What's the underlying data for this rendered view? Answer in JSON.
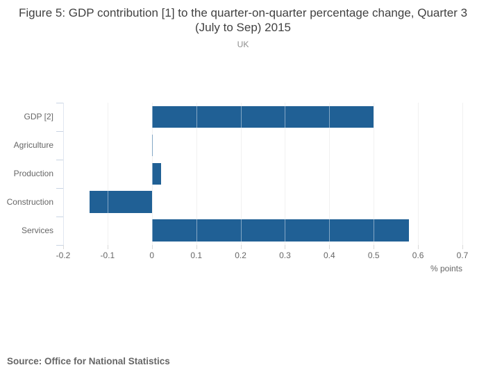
{
  "header": {
    "title": "Figure 5: GDP contribution [1] to the quarter-on-quarter percentage change, Quarter 3 (July to Sep) 2015",
    "subtitle": "UK"
  },
  "footer": {
    "source": "Source: Office for National Statistics"
  },
  "chart_data": {
    "type": "bar",
    "orientation": "horizontal",
    "title": "Figure 5: GDP contribution [1] to the quarter-on-quarter percentage change, Quarter 3 (July to Sep) 2015",
    "subtitle": "UK",
    "categories": [
      "GDP [2]",
      "Agriculture",
      "Production",
      "Construction",
      "Services"
    ],
    "values": [
      0.5,
      0.0,
      0.02,
      -0.14,
      0.58
    ],
    "xlabel": "% points",
    "ylabel": "",
    "xlim": [
      -0.2,
      0.7
    ],
    "xticks": [
      -0.2,
      -0.1,
      0,
      0.1,
      0.2,
      0.3,
      0.4,
      0.5,
      0.6,
      0.7
    ],
    "xtick_labels": [
      "-0.2",
      "-0.1",
      "0",
      "0.1",
      "0.2",
      "0.3",
      "0.4",
      "0.5",
      "0.6",
      "0.7"
    ],
    "grid": true,
    "legend": "none",
    "colors": {
      "bar": "#206095",
      "gridline": "#e6e6e6",
      "x_tick_mark": "#d9d9d9",
      "y_axis": "#c9d4e3",
      "text": "#666666",
      "title_text": "#414141",
      "subtitle_text": "#8e8e8e"
    }
  }
}
